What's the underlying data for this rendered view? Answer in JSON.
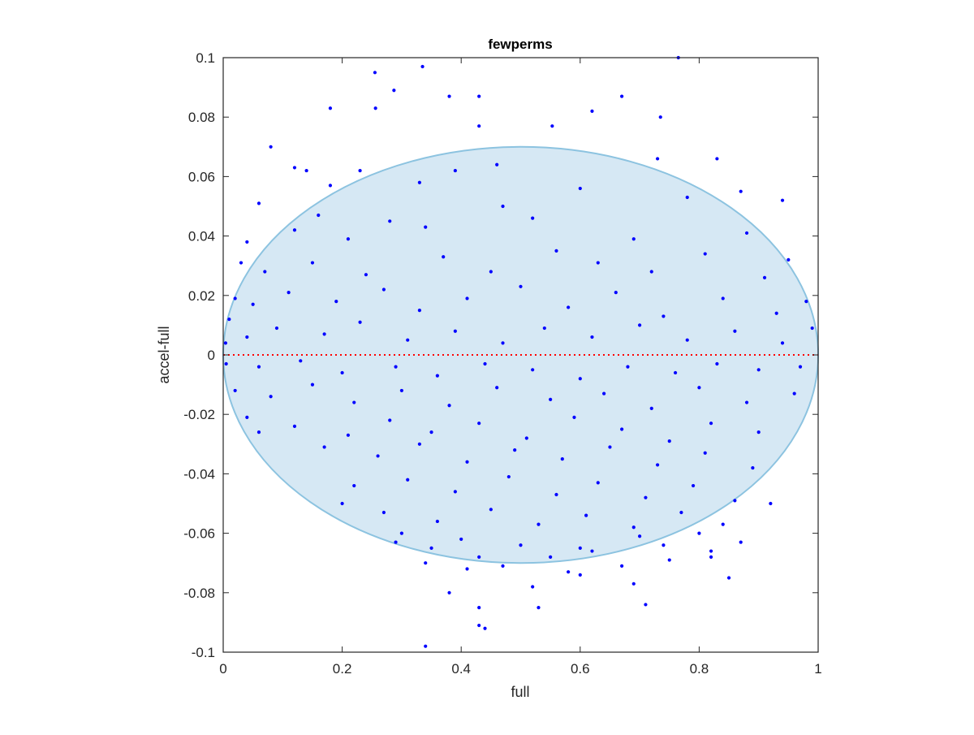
{
  "chart_data": {
    "type": "scatter",
    "title": "fewperms",
    "xlabel": "full",
    "ylabel": "accel-full",
    "xlim": [
      0,
      1
    ],
    "ylim": [
      -0.1,
      0.1
    ],
    "xticks": [
      0,
      0.2,
      0.4,
      0.6,
      0.8,
      1
    ],
    "xtick_labels": [
      "0",
      "0.2",
      "0.4",
      "0.6",
      "0.8",
      "1"
    ],
    "yticks": [
      -0.1,
      -0.08,
      -0.06,
      -0.04,
      -0.02,
      0,
      0.02,
      0.04,
      0.06,
      0.08,
      0.1
    ],
    "ytick_labels": [
      "-0.1",
      "-0.08",
      "-0.06",
      "-0.04",
      "-0.02",
      "0",
      "0.02",
      "0.04",
      "0.06",
      "0.08",
      "0.1"
    ],
    "grid": false,
    "reference_line": {
      "y": 0,
      "style": "dotted",
      "color": "#ff0000"
    },
    "region": {
      "shape": "ellipse",
      "center": [
        0.5,
        0
      ],
      "semi_axes": [
        0.5,
        0.07
      ],
      "fill": "#d6e8f4",
      "stroke": "#8cc3e0"
    },
    "series": [
      {
        "color": "#0000ff",
        "marker": "dot",
        "points": [
          [
            0.255,
            0.095
          ],
          [
            0.335,
            0.097
          ],
          [
            0.765,
            0.1
          ],
          [
            0.287,
            0.089
          ],
          [
            0.18,
            0.083
          ],
          [
            0.256,
            0.083
          ],
          [
            0.38,
            0.087
          ],
          [
            0.43,
            0.087
          ],
          [
            0.67,
            0.087
          ],
          [
            0.735,
            0.08
          ],
          [
            0.08,
            0.07
          ],
          [
            0.43,
            0.077
          ],
          [
            0.553,
            0.077
          ],
          [
            0.62,
            0.082
          ],
          [
            0.73,
            0.066
          ],
          [
            0.83,
            0.066
          ],
          [
            0.12,
            0.063
          ],
          [
            0.14,
            0.062
          ],
          [
            0.23,
            0.062
          ],
          [
            0.39,
            0.062
          ],
          [
            0.46,
            0.064
          ],
          [
            0.94,
            0.052
          ],
          [
            0.06,
            0.051
          ],
          [
            0.18,
            0.057
          ],
          [
            0.33,
            0.058
          ],
          [
            0.87,
            0.055
          ],
          [
            0.04,
            0.038
          ],
          [
            0.16,
            0.047
          ],
          [
            0.28,
            0.045
          ],
          [
            0.47,
            0.05
          ],
          [
            0.6,
            0.056
          ],
          [
            0.78,
            0.053
          ],
          [
            0.03,
            0.031
          ],
          [
            0.12,
            0.042
          ],
          [
            0.21,
            0.039
          ],
          [
            0.34,
            0.043
          ],
          [
            0.52,
            0.046
          ],
          [
            0.69,
            0.039
          ],
          [
            0.88,
            0.041
          ],
          [
            0.95,
            0.032
          ],
          [
            0.02,
            0.019
          ],
          [
            0.07,
            0.028
          ],
          [
            0.15,
            0.031
          ],
          [
            0.24,
            0.027
          ],
          [
            0.37,
            0.033
          ],
          [
            0.45,
            0.028
          ],
          [
            0.56,
            0.035
          ],
          [
            0.63,
            0.031
          ],
          [
            0.72,
            0.028
          ],
          [
            0.81,
            0.034
          ],
          [
            0.91,
            0.026
          ],
          [
            0.98,
            0.018
          ],
          [
            0.01,
            0.012
          ],
          [
            0.05,
            0.017
          ],
          [
            0.11,
            0.021
          ],
          [
            0.19,
            0.018
          ],
          [
            0.27,
            0.022
          ],
          [
            0.33,
            0.015
          ],
          [
            0.41,
            0.019
          ],
          [
            0.5,
            0.023
          ],
          [
            0.58,
            0.016
          ],
          [
            0.66,
            0.021
          ],
          [
            0.74,
            0.013
          ],
          [
            0.84,
            0.019
          ],
          [
            0.93,
            0.014
          ],
          [
            0.99,
            0.009
          ],
          [
            0.004,
            0.004
          ],
          [
            0.04,
            0.006
          ],
          [
            0.09,
            0.009
          ],
          [
            0.17,
            0.007
          ],
          [
            0.23,
            0.011
          ],
          [
            0.31,
            0.005
          ],
          [
            0.39,
            0.008
          ],
          [
            0.47,
            0.004
          ],
          [
            0.54,
            0.009
          ],
          [
            0.62,
            0.006
          ],
          [
            0.7,
            0.01
          ],
          [
            0.78,
            0.005
          ],
          [
            0.86,
            0.008
          ],
          [
            0.94,
            0.004
          ],
          [
            0.005,
            -0.003
          ],
          [
            0.06,
            -0.004
          ],
          [
            0.13,
            -0.002
          ],
          [
            0.2,
            -0.006
          ],
          [
            0.29,
            -0.004
          ],
          [
            0.36,
            -0.007
          ],
          [
            0.44,
            -0.003
          ],
          [
            0.52,
            -0.005
          ],
          [
            0.6,
            -0.008
          ],
          [
            0.68,
            -0.004
          ],
          [
            0.76,
            -0.006
          ],
          [
            0.83,
            -0.003
          ],
          [
            0.9,
            -0.005
          ],
          [
            0.97,
            -0.004
          ],
          [
            0.02,
            -0.012
          ],
          [
            0.08,
            -0.014
          ],
          [
            0.15,
            -0.01
          ],
          [
            0.22,
            -0.016
          ],
          [
            0.3,
            -0.012
          ],
          [
            0.38,
            -0.017
          ],
          [
            0.46,
            -0.011
          ],
          [
            0.55,
            -0.015
          ],
          [
            0.64,
            -0.013
          ],
          [
            0.72,
            -0.018
          ],
          [
            0.8,
            -0.011
          ],
          [
            0.88,
            -0.016
          ],
          [
            0.96,
            -0.013
          ],
          [
            0.04,
            -0.021
          ],
          [
            0.12,
            -0.024
          ],
          [
            0.21,
            -0.027
          ],
          [
            0.28,
            -0.022
          ],
          [
            0.35,
            -0.026
          ],
          [
            0.43,
            -0.023
          ],
          [
            0.51,
            -0.028
          ],
          [
            0.59,
            -0.021
          ],
          [
            0.67,
            -0.025
          ],
          [
            0.75,
            -0.029
          ],
          [
            0.82,
            -0.023
          ],
          [
            0.9,
            -0.026
          ],
          [
            0.06,
            -0.026
          ],
          [
            0.17,
            -0.031
          ],
          [
            0.26,
            -0.034
          ],
          [
            0.33,
            -0.03
          ],
          [
            0.41,
            -0.036
          ],
          [
            0.49,
            -0.032
          ],
          [
            0.57,
            -0.035
          ],
          [
            0.65,
            -0.031
          ],
          [
            0.73,
            -0.037
          ],
          [
            0.81,
            -0.033
          ],
          [
            0.89,
            -0.038
          ],
          [
            0.22,
            -0.044
          ],
          [
            0.31,
            -0.042
          ],
          [
            0.39,
            -0.046
          ],
          [
            0.48,
            -0.041
          ],
          [
            0.56,
            -0.047
          ],
          [
            0.63,
            -0.043
          ],
          [
            0.71,
            -0.048
          ],
          [
            0.79,
            -0.044
          ],
          [
            0.86,
            -0.049
          ],
          [
            0.2,
            -0.05
          ],
          [
            0.27,
            -0.053
          ],
          [
            0.36,
            -0.056
          ],
          [
            0.45,
            -0.052
          ],
          [
            0.53,
            -0.057
          ],
          [
            0.61,
            -0.054
          ],
          [
            0.69,
            -0.058
          ],
          [
            0.77,
            -0.053
          ],
          [
            0.84,
            -0.057
          ],
          [
            0.92,
            -0.05
          ],
          [
            0.3,
            -0.06
          ],
          [
            0.4,
            -0.062
          ],
          [
            0.5,
            -0.064
          ],
          [
            0.6,
            -0.065
          ],
          [
            0.7,
            -0.061
          ],
          [
            0.8,
            -0.06
          ],
          [
            0.29,
            -0.063
          ],
          [
            0.35,
            -0.065
          ],
          [
            0.43,
            -0.068
          ],
          [
            0.55,
            -0.068
          ],
          [
            0.62,
            -0.066
          ],
          [
            0.74,
            -0.064
          ],
          [
            0.82,
            -0.066
          ],
          [
            0.87,
            -0.063
          ],
          [
            0.34,
            -0.07
          ],
          [
            0.41,
            -0.072
          ],
          [
            0.47,
            -0.071
          ],
          [
            0.58,
            -0.073
          ],
          [
            0.67,
            -0.071
          ],
          [
            0.75,
            -0.069
          ],
          [
            0.82,
            -0.068
          ],
          [
            0.52,
            -0.078
          ],
          [
            0.6,
            -0.074
          ],
          [
            0.69,
            -0.077
          ],
          [
            0.85,
            -0.075
          ],
          [
            0.38,
            -0.08
          ],
          [
            0.53,
            -0.085
          ],
          [
            0.71,
            -0.084
          ],
          [
            0.43,
            -0.085
          ],
          [
            0.43,
            -0.091
          ],
          [
            0.44,
            -0.092
          ],
          [
            0.34,
            -0.098
          ]
        ]
      }
    ]
  }
}
